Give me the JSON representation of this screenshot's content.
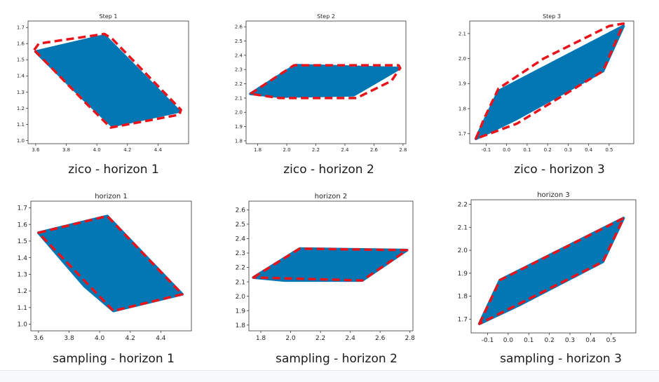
{
  "colors": {
    "fill": "#0277b4",
    "boundary": "#e8141c",
    "axis": "#333333"
  },
  "chart_data": [
    {
      "type": "area",
      "title": "Step 1",
      "caption": "zico - horizon 1",
      "xlim": [
        3.55,
        4.6
      ],
      "ylim": [
        0.98,
        1.74
      ],
      "xticks": [
        "3.6",
        "3.8",
        "4.0",
        "4.2",
        "4.4"
      ],
      "yticks": [
        "1.0",
        "1.1",
        "1.2",
        "1.3",
        "1.4",
        "1.5",
        "1.6",
        "1.7"
      ],
      "region": [
        [
          3.6,
          1.55
        ],
        [
          4.05,
          1.65
        ],
        [
          4.54,
          1.18
        ],
        [
          4.1,
          1.09
        ],
        [
          3.92,
          1.25
        ]
      ],
      "bound": [
        [
          3.59,
          1.56
        ],
        [
          3.62,
          1.6
        ],
        [
          4.05,
          1.66
        ],
        [
          4.1,
          1.63
        ],
        [
          4.55,
          1.19
        ],
        [
          4.54,
          1.16
        ],
        [
          4.09,
          1.08
        ],
        [
          3.94,
          1.22
        ]
      ]
    },
    {
      "type": "area",
      "title": "Step 2",
      "caption": "zico - horizon 2",
      "xlim": [
        1.72,
        2.82
      ],
      "ylim": [
        1.78,
        2.64
      ],
      "xticks": [
        "1.8",
        "2.0",
        "2.2",
        "2.4",
        "2.6",
        "2.8"
      ],
      "yticks": [
        "1.8",
        "1.9",
        "2.0",
        "2.1",
        "2.2",
        "2.3",
        "2.4",
        "2.5",
        "2.6"
      ],
      "region": [
        [
          1.75,
          2.13
        ],
        [
          2.06,
          2.33
        ],
        [
          2.78,
          2.31
        ],
        [
          2.46,
          2.12
        ],
        [
          1.95,
          2.11
        ]
      ],
      "bound": [
        [
          1.75,
          2.13
        ],
        [
          2.05,
          2.33
        ],
        [
          2.77,
          2.33
        ],
        [
          2.78,
          2.31
        ],
        [
          2.72,
          2.22
        ],
        [
          2.48,
          2.1
        ],
        [
          1.95,
          2.1
        ]
      ]
    },
    {
      "type": "area",
      "title": "Step 3",
      "caption": "zico - horizon 3",
      "xlim": [
        -0.18,
        0.62
      ],
      "ylim": [
        1.66,
        2.15
      ],
      "xticks": [
        "-0.1",
        "0.0",
        "0.1",
        "0.2",
        "0.3",
        "0.4",
        "0.5"
      ],
      "yticks": [
        "1.7",
        "1.8",
        "1.9",
        "2.0",
        "2.1"
      ],
      "region": [
        [
          -0.15,
          1.68
        ],
        [
          -0.04,
          1.87
        ],
        [
          0.57,
          2.13
        ],
        [
          0.47,
          1.95
        ],
        [
          0.05,
          1.76
        ]
      ],
      "bound": [
        [
          -0.15,
          1.68
        ],
        [
          -0.11,
          1.76
        ],
        [
          -0.04,
          1.88
        ],
        [
          0.18,
          2.0
        ],
        [
          0.5,
          2.13
        ],
        [
          0.57,
          2.14
        ],
        [
          0.47,
          1.95
        ],
        [
          0.05,
          1.74
        ]
      ]
    },
    {
      "type": "area",
      "title": "horizon 1",
      "caption": "sampling - horizon 1",
      "xlim": [
        3.55,
        4.6
      ],
      "ylim": [
        0.96,
        1.74
      ],
      "xticks": [
        "3.6",
        "3.8",
        "4.0",
        "4.2",
        "4.4"
      ],
      "yticks": [
        "1.0",
        "1.1",
        "1.2",
        "1.3",
        "1.4",
        "1.5",
        "1.6",
        "1.7"
      ],
      "region": [
        [
          3.6,
          1.55
        ],
        [
          4.05,
          1.65
        ],
        [
          4.54,
          1.18
        ],
        [
          4.09,
          1.08
        ],
        [
          3.9,
          1.23
        ]
      ],
      "bound": [
        [
          3.6,
          1.55
        ],
        [
          4.05,
          1.65
        ],
        [
          4.54,
          1.18
        ],
        [
          4.09,
          1.08
        ],
        [
          3.6,
          1.55
        ]
      ]
    },
    {
      "type": "area",
      "title": "horizon 2",
      "caption": "sampling - horizon 2",
      "xlim": [
        1.72,
        2.82
      ],
      "ylim": [
        1.76,
        2.66
      ],
      "xticks": [
        "1.8",
        "2.0",
        "2.2",
        "2.4",
        "2.6",
        "2.8"
      ],
      "yticks": [
        "1.8",
        "1.9",
        "2.0",
        "2.1",
        "2.2",
        "2.3",
        "2.4",
        "2.5",
        "2.6"
      ],
      "region": [
        [
          1.75,
          2.13
        ],
        [
          2.06,
          2.33
        ],
        [
          2.78,
          2.32
        ],
        [
          2.48,
          2.11
        ],
        [
          1.96,
          2.11
        ]
      ],
      "bound": [
        [
          1.75,
          2.13
        ],
        [
          2.06,
          2.33
        ],
        [
          2.78,
          2.32
        ],
        [
          2.48,
          2.11
        ],
        [
          1.75,
          2.13
        ]
      ]
    },
    {
      "type": "area",
      "title": "horizon 3",
      "caption": "sampling - horizon 3",
      "xlim": [
        -0.18,
        0.62
      ],
      "ylim": [
        1.64,
        2.22
      ],
      "xticks": [
        "-0.1",
        "0.0",
        "0.1",
        "0.2",
        "0.3",
        "0.4",
        "0.5"
      ],
      "yticks": [
        "1.7",
        "1.8",
        "1.9",
        "2.0",
        "2.1",
        "2.2"
      ],
      "region": [
        [
          -0.14,
          1.68
        ],
        [
          -0.04,
          1.87
        ],
        [
          0.56,
          2.14
        ],
        [
          0.46,
          1.95
        ],
        [
          0.05,
          1.76
        ]
      ],
      "bound": [
        [
          -0.14,
          1.68
        ],
        [
          -0.04,
          1.87
        ],
        [
          0.56,
          2.14
        ],
        [
          0.46,
          1.95
        ],
        [
          -0.14,
          1.68
        ]
      ]
    }
  ]
}
